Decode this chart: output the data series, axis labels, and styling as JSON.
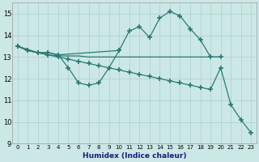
{
  "x": [
    0,
    1,
    2,
    3,
    4,
    5,
    6,
    7,
    8,
    9,
    10,
    11,
    12,
    13,
    14,
    15,
    16,
    17,
    18,
    19,
    20,
    21,
    22,
    23
  ],
  "series_peak": {
    "x": [
      0,
      1,
      2,
      3,
      4,
      10,
      11,
      12,
      13,
      14,
      15,
      16,
      17,
      18,
      19,
      20
    ],
    "y": [
      13.5,
      13.3,
      13.2,
      13.2,
      13.1,
      13.3,
      14.2,
      14.4,
      13.9,
      14.8,
      15.1,
      14.9,
      14.3,
      13.8,
      13.0,
      13.0
    ]
  },
  "series_dip": {
    "x": [
      0,
      1,
      2,
      3,
      4,
      5,
      6,
      7,
      8,
      9,
      10
    ],
    "y": [
      13.5,
      13.3,
      13.2,
      13.2,
      13.1,
      12.5,
      11.8,
      11.7,
      11.8,
      12.5,
      13.3
    ]
  },
  "series_flat_top": {
    "x": [
      0,
      1,
      2,
      3,
      4,
      5,
      6,
      7,
      8,
      9,
      10,
      11,
      12,
      13,
      14,
      15,
      16,
      17,
      18,
      19,
      20
    ],
    "y": [
      13.5,
      13.35,
      13.2,
      13.1,
      13.05,
      13.05,
      13.05,
      13.0,
      13.0,
      13.0,
      13.0,
      13.0,
      13.0,
      13.0,
      13.0,
      13.0,
      13.0,
      13.0,
      13.0,
      13.0,
      13.0
    ]
  },
  "series_diagonal": {
    "x": [
      0,
      1,
      2,
      3,
      4,
      5,
      6,
      7,
      8,
      9,
      10,
      11,
      12,
      13,
      14,
      15,
      16,
      17,
      18,
      19,
      20,
      21,
      22,
      23
    ],
    "y": [
      13.5,
      13.3,
      13.2,
      13.1,
      13.0,
      12.9,
      12.8,
      12.7,
      12.6,
      12.5,
      12.4,
      12.3,
      12.2,
      12.1,
      12.0,
      11.9,
      11.8,
      11.7,
      11.6,
      11.5,
      12.5,
      10.8,
      10.1,
      9.5
    ]
  },
  "color": "#2a7a72",
  "bg_color": "#cce8e6",
  "grid_color": "#aacfcc",
  "xlabel": "Humidex (Indice chaleur)",
  "ylim": [
    9,
    15.5
  ],
  "xlim": [
    -0.5,
    23.5
  ],
  "yticks": [
    9,
    10,
    11,
    12,
    13,
    14,
    15
  ],
  "xticks": [
    0,
    1,
    2,
    3,
    4,
    5,
    6,
    7,
    8,
    9,
    10,
    11,
    12,
    13,
    14,
    15,
    16,
    17,
    18,
    19,
    20,
    21,
    22,
    23
  ]
}
